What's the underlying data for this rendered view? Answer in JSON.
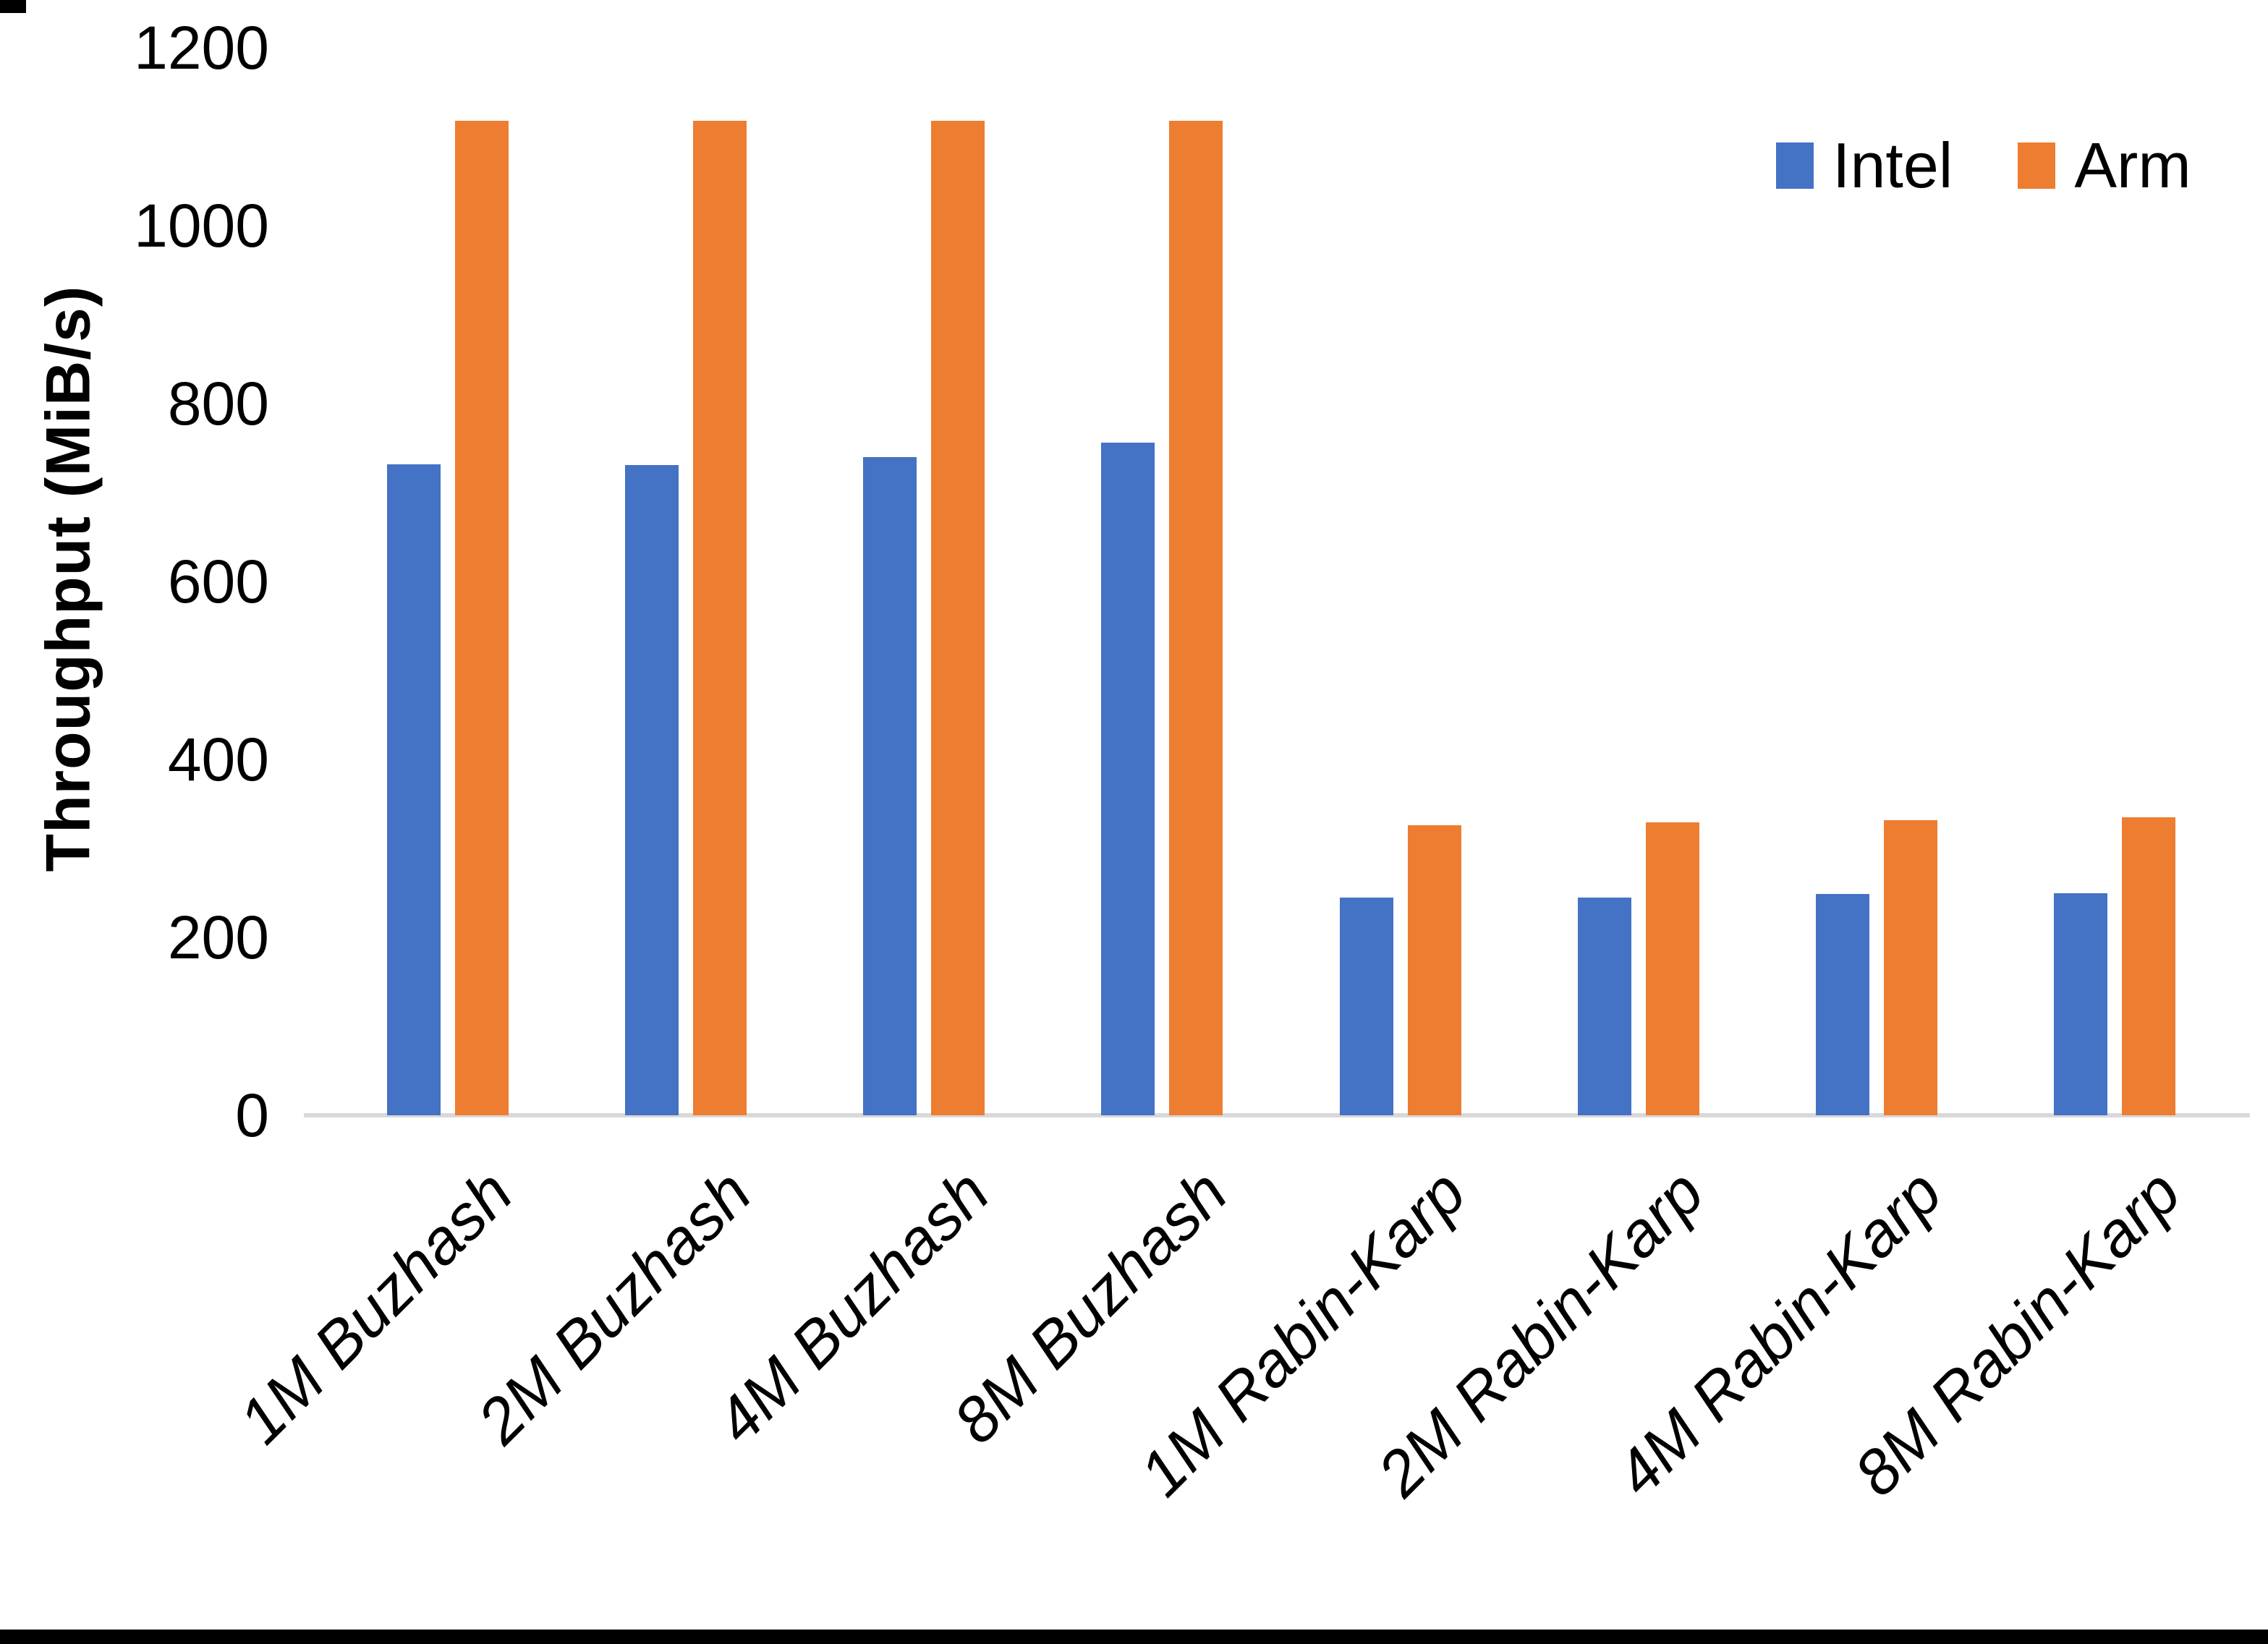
{
  "chart_data": {
    "type": "bar",
    "title": "",
    "xlabel": "",
    "ylabel": "Throughput (MiB/s)",
    "categories": [
      "1M Buzhash",
      "2M Buzhash",
      "4M Buzhash",
      "8M Buzhash",
      "1M Rabin-Karp",
      "2M Rabin-Karp",
      "4M Rabin-Karp",
      "8M Rabin-Karp"
    ],
    "series": [
      {
        "name": "Intel",
        "color": "#4472C4",
        "values": [
          732,
          731,
          740,
          756,
          245,
          245,
          249,
          250
        ]
      },
      {
        "name": "Arm",
        "color": "#ED7D31",
        "values": [
          1118,
          1118,
          1118,
          1118,
          326,
          329,
          332,
          335
        ]
      }
    ],
    "yticks": [
      0,
      200,
      400,
      600,
      800,
      1000,
      1200
    ],
    "ylim": [
      0,
      1200
    ],
    "grid": false,
    "legend_position": "top-right"
  },
  "colors": {
    "axis_line": "#D9D9D9",
    "text": "#000000",
    "background": "#FFFFFF"
  }
}
